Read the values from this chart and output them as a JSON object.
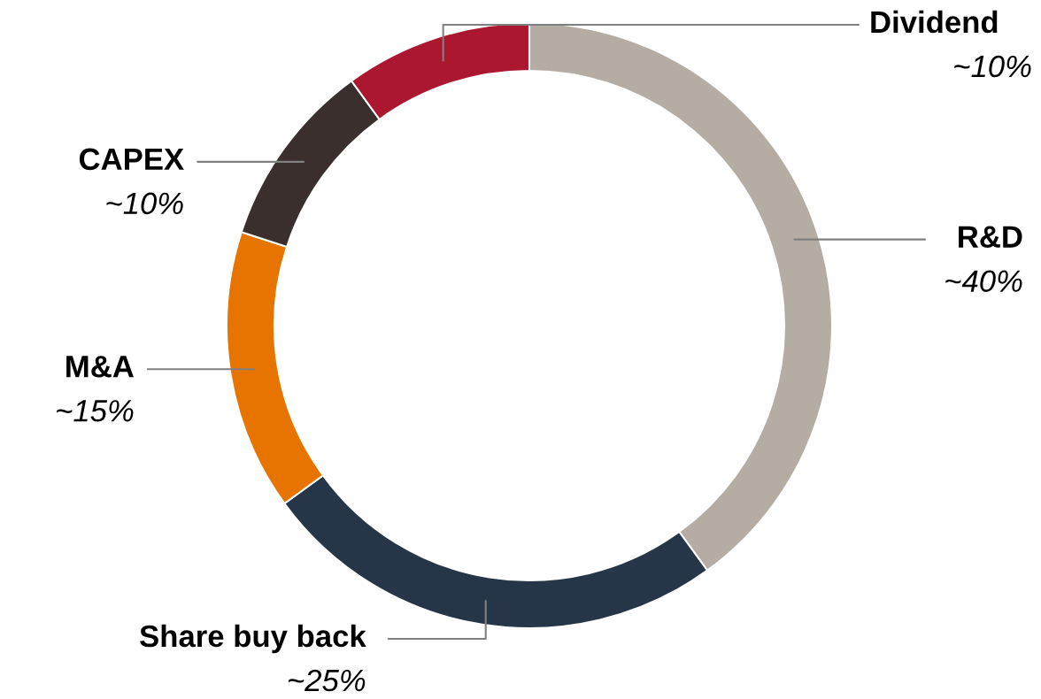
{
  "chart_data": {
    "type": "donut",
    "categories": [
      "R&D",
      "Share buy back",
      "M&A",
      "CAPEX",
      "Dividend"
    ],
    "values": [
      40,
      25,
      15,
      10,
      10
    ],
    "value_labels": [
      "~40%",
      "~25%",
      "~15%",
      "~10%",
      "~10%"
    ],
    "colors": [
      "#b5aca3",
      "#263648",
      "#e87400",
      "#3a2f2c",
      "#ab172f"
    ]
  }
}
